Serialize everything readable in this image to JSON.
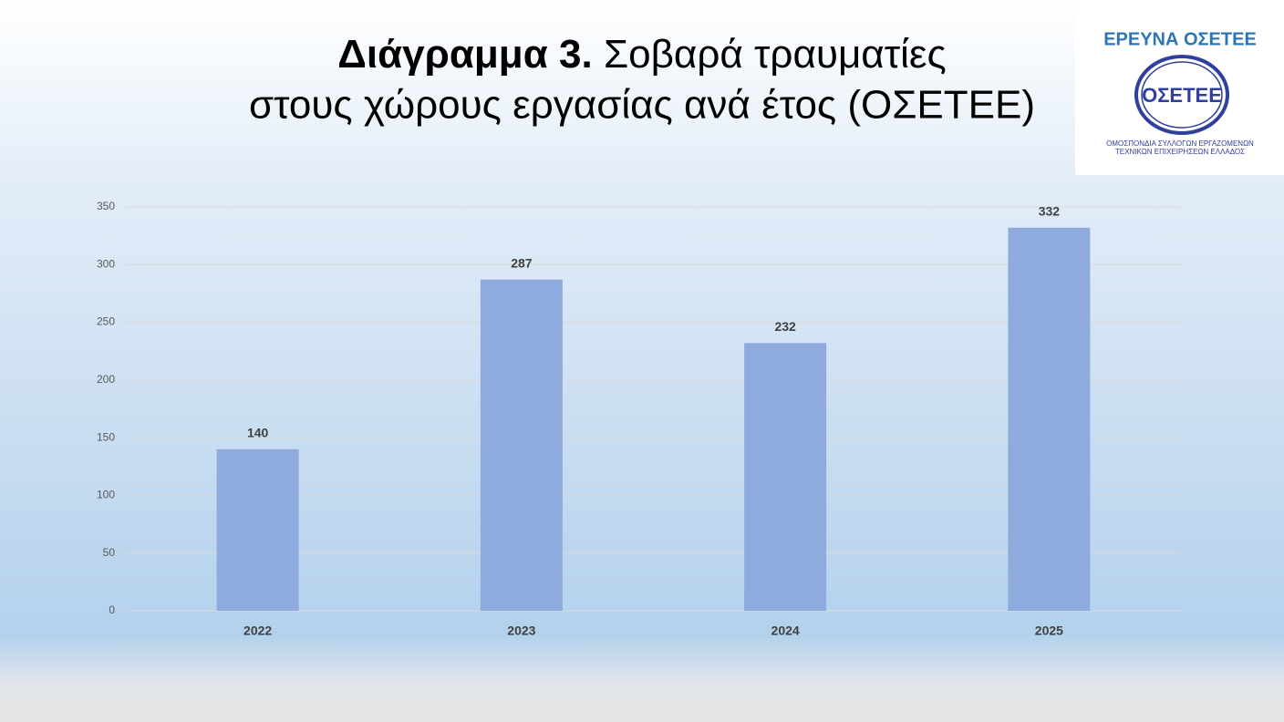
{
  "chart_data": {
    "type": "bar",
    "title": [
      "Διάγραμμα 3.",
      "Σοβαρά τραυματίες",
      "στους χώρους εργασίας  ανά έτος (ΟΣΕΤΕΕ)"
    ],
    "categories": [
      "2022",
      "2023",
      "2024",
      "2025"
    ],
    "values": [
      140,
      287,
      232,
      332
    ],
    "color": "#8faadc",
    "ylim": [
      0,
      350
    ],
    "yticks": [
      0,
      50,
      100,
      150,
      200,
      250,
      300,
      350
    ],
    "grid": true
  },
  "logo": {
    "heading": "ΕΡΕΥΝΑ ΟΣΕΤΕΕ",
    "emblem": "ΟΣΕΤΕΕ",
    "caption": [
      "ΟΜΟΣΠΟΝΔΙΑ ΣΥΛΛΟΓΩΝ ΕΡΓΑΖΟΜΕΝΩΝ",
      "ΤΕΧΝΙΚΩΝ ΕΠΙΧΕΙΡΗΣΕΩΝ ΕΛΛΑΔΟΣ"
    ]
  }
}
